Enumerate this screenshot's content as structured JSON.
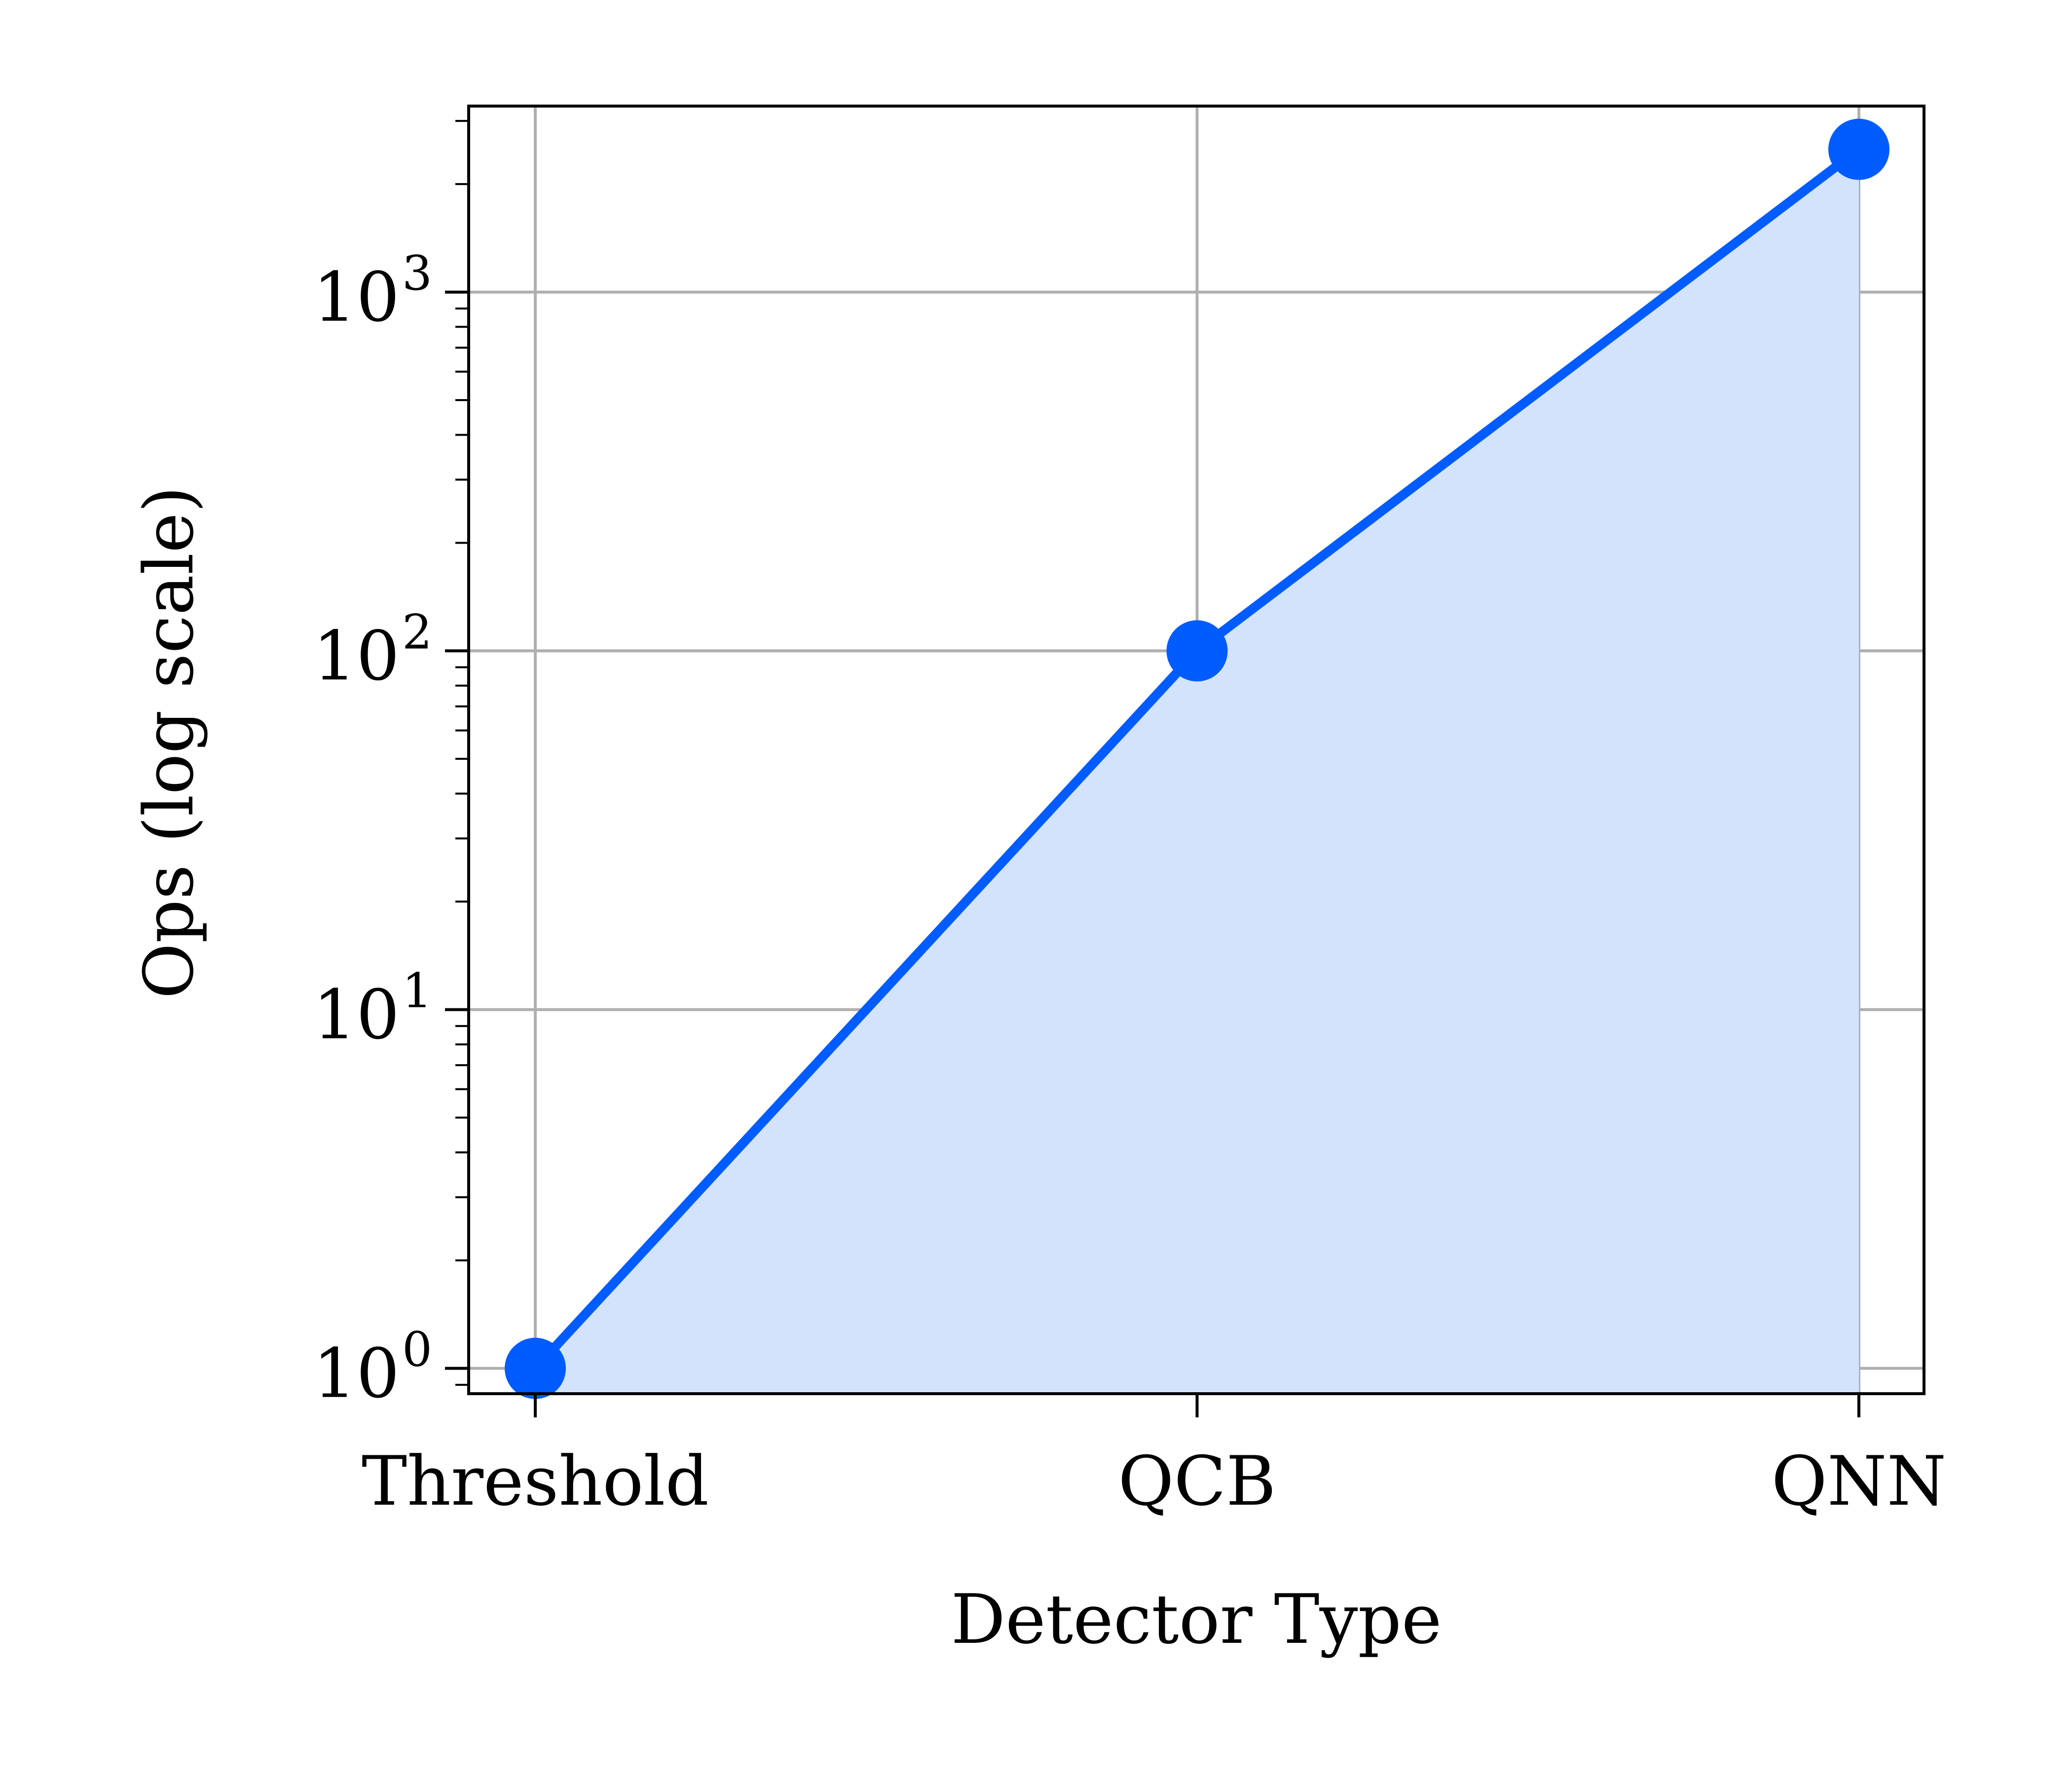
{
  "chart_data": {
    "type": "line",
    "title": "",
    "xlabel": "Detector Type",
    "ylabel": "Ops (log scale)",
    "categories": [
      "Threshold",
      "QCB",
      "QNN"
    ],
    "series": [
      {
        "values": [
          1,
          100,
          2500
        ],
        "color": "#005cff",
        "fill_color": "#d3e3fc",
        "marker": "circle",
        "filled_area": true
      }
    ],
    "yscale": "log",
    "ylim": [
      0.85,
      3300
    ],
    "yticks": [
      {
        "value": 1,
        "base": "10",
        "exp": "0"
      },
      {
        "value": 10,
        "base": "10",
        "exp": "1"
      },
      {
        "value": 100,
        "base": "10",
        "exp": "2"
      },
      {
        "value": 1000,
        "base": "10",
        "exp": "3"
      }
    ],
    "grid": true,
    "legend": "none"
  }
}
